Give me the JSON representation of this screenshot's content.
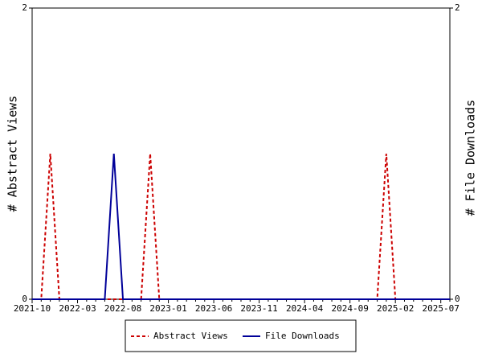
{
  "chart_data": {
    "type": "line",
    "categories": [
      "2021-10",
      null,
      null,
      null,
      null,
      "2022-03",
      null,
      null,
      null,
      null,
      "2022-08",
      null,
      null,
      null,
      null,
      "2023-01",
      null,
      null,
      null,
      null,
      "2023-06",
      null,
      null,
      null,
      null,
      "2023-11",
      null,
      null,
      null,
      null,
      "2024-04",
      null,
      null,
      null,
      null,
      "2024-09",
      null,
      null,
      null,
      null,
      "2025-02",
      null,
      null,
      null,
      null,
      "2025-07",
      null
    ],
    "series": [
      {
        "name": "Abstract Views",
        "color": "#cc0000",
        "style": "dashed",
        "axis": "y",
        "values": [
          0,
          0,
          1,
          0,
          0,
          0,
          0,
          0,
          0,
          0,
          0,
          0,
          0,
          1,
          0,
          0,
          0,
          0,
          0,
          0,
          0,
          0,
          0,
          0,
          0,
          0,
          0,
          0,
          0,
          0,
          0,
          0,
          0,
          0,
          0,
          0,
          0,
          0,
          0,
          1,
          0,
          0,
          0,
          0,
          0,
          0,
          0
        ]
      },
      {
        "name": "File Downloads",
        "color": "#000099",
        "style": "solid",
        "axis": "y2",
        "values": [
          0,
          0,
          0,
          0,
          0,
          0,
          0,
          0,
          0,
          1,
          0,
          0,
          0,
          0,
          0,
          0,
          0,
          0,
          0,
          0,
          0,
          0,
          0,
          0,
          0,
          0,
          0,
          0,
          0,
          0,
          0,
          0,
          0,
          0,
          0,
          0,
          0,
          0,
          0,
          0,
          0,
          0,
          0,
          0,
          0,
          0,
          0
        ]
      }
    ],
    "ylabel": "# Abstract Views",
    "y2label": "# File Downloads",
    "ylim": [
      0,
      2
    ],
    "yticks": [
      0,
      2
    ],
    "y2lim": [
      0,
      2
    ],
    "y2ticks": [
      0,
      2
    ],
    "grid": false,
    "legend": "bottom"
  }
}
